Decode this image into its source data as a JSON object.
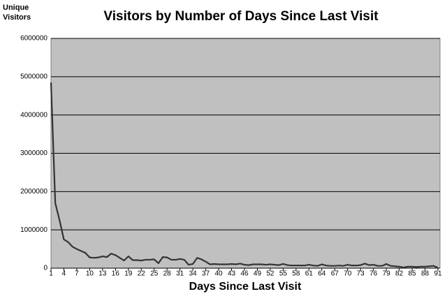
{
  "chart_data": {
    "type": "line",
    "title": "Visitors by Number of Days Since Last Visit",
    "ylabel": [
      "Unique",
      "Visitors"
    ],
    "xlabel": "Days Since Last Visit",
    "x": [
      1,
      2,
      3,
      4,
      5,
      6,
      7,
      8,
      9,
      10,
      11,
      12,
      13,
      14,
      15,
      16,
      17,
      18,
      19,
      20,
      21,
      22,
      23,
      24,
      25,
      26,
      27,
      28,
      29,
      30,
      31,
      32,
      33,
      34,
      35,
      36,
      37,
      38,
      39,
      40,
      41,
      42,
      43,
      44,
      45,
      46,
      47,
      48,
      49,
      50,
      51,
      52,
      53,
      54,
      55,
      56,
      57,
      58,
      59,
      60,
      61,
      62,
      63,
      64,
      65,
      66,
      67,
      68,
      69,
      70,
      71,
      72,
      73,
      74,
      75,
      76,
      77,
      78,
      79,
      80,
      81,
      82,
      83,
      84,
      85,
      86,
      87,
      88,
      89,
      90,
      91
    ],
    "series": [
      {
        "name": "Unique Visitors",
        "color": "#333333",
        "values": [
          4850000,
          1700000,
          1250000,
          750000,
          680000,
          560000,
          500000,
          450000,
          400000,
          280000,
          270000,
          280000,
          310000,
          290000,
          380000,
          340000,
          270000,
          200000,
          310000,
          210000,
          210000,
          200000,
          220000,
          220000,
          230000,
          130000,
          290000,
          280000,
          220000,
          220000,
          240000,
          220000,
          90000,
          110000,
          270000,
          230000,
          170000,
          100000,
          110000,
          100000,
          100000,
          100000,
          110000,
          100000,
          120000,
          90000,
          80000,
          100000,
          100000,
          100000,
          90000,
          100000,
          90000,
          80000,
          110000,
          80000,
          70000,
          70000,
          70000,
          70000,
          90000,
          70000,
          60000,
          100000,
          70000,
          60000,
          60000,
          70000,
          60000,
          90000,
          70000,
          70000,
          80000,
          120000,
          80000,
          90000,
          60000,
          60000,
          110000,
          60000,
          50000,
          40000,
          20000,
          40000,
          40000,
          30000,
          40000,
          40000,
          50000,
          60000,
          10000
        ]
      }
    ],
    "xlim": [
      1,
      91
    ],
    "xticks": [
      1,
      4,
      7,
      10,
      13,
      16,
      19,
      22,
      25,
      28,
      31,
      34,
      37,
      40,
      43,
      46,
      49,
      52,
      55,
      58,
      61,
      64,
      67,
      70,
      73,
      76,
      79,
      82,
      85,
      88,
      91
    ],
    "ylim": [
      0,
      6000000
    ],
    "yticks": [
      0,
      1000000,
      2000000,
      3000000,
      4000000,
      5000000,
      6000000
    ],
    "grid": true
  }
}
